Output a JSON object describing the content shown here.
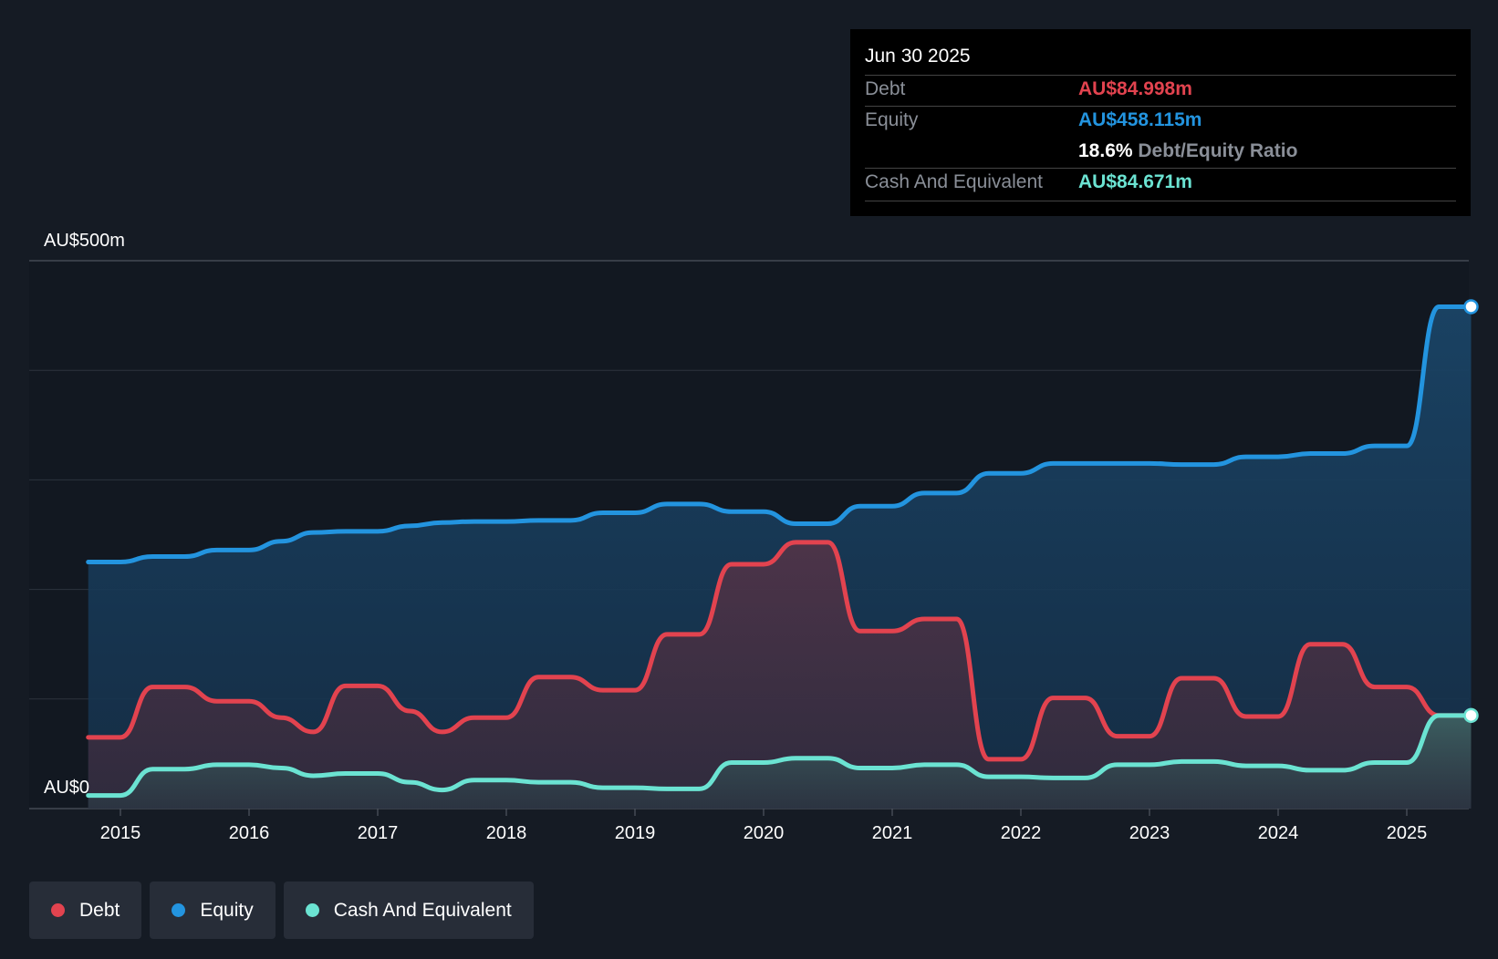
{
  "tooltip": {
    "date": "Jun 30 2025",
    "debt_label": "Debt",
    "debt_value": "AU$84.998m",
    "equity_label": "Equity",
    "equity_value": "AU$458.115m",
    "ratio_value": "18.6%",
    "ratio_label": "Debt/Equity Ratio",
    "cash_label": "Cash And Equivalent",
    "cash_value": "AU$84.671m"
  },
  "legend": {
    "debt": "Debt",
    "equity": "Equity",
    "cash": "Cash And Equivalent"
  },
  "colors": {
    "debt": "#e2434f",
    "equity": "#2394df",
    "cash": "#6be3d2",
    "background": "#151b24"
  },
  "chart_data": {
    "type": "area",
    "ylabel_top": "AU$500m",
    "ylabel_bottom": "AU$0",
    "ylim": [
      0,
      500
    ],
    "x_ticks": [
      "2015",
      "2016",
      "2017",
      "2018",
      "2019",
      "2020",
      "2021",
      "2022",
      "2023",
      "2024",
      "2025"
    ],
    "series": [
      {
        "name": "Equity",
        "points": [
          [
            2014.75,
            225
          ],
          [
            2015.0,
            225
          ],
          [
            2015.25,
            230
          ],
          [
            2015.5,
            230
          ],
          [
            2015.75,
            236
          ],
          [
            2016.0,
            236
          ],
          [
            2016.25,
            244
          ],
          [
            2016.5,
            252
          ],
          [
            2016.75,
            253
          ],
          [
            2017.0,
            253
          ],
          [
            2017.25,
            258
          ],
          [
            2017.5,
            261
          ],
          [
            2017.75,
            262
          ],
          [
            2018.0,
            262
          ],
          [
            2018.25,
            263
          ],
          [
            2018.5,
            263
          ],
          [
            2018.75,
            270
          ],
          [
            2019.0,
            270
          ],
          [
            2019.25,
            278
          ],
          [
            2019.5,
            278
          ],
          [
            2019.75,
            271
          ],
          [
            2020.0,
            271
          ],
          [
            2020.25,
            260
          ],
          [
            2020.5,
            260
          ],
          [
            2020.75,
            276
          ],
          [
            2021.0,
            276
          ],
          [
            2021.25,
            288
          ],
          [
            2021.5,
            288
          ],
          [
            2021.75,
            306
          ],
          [
            2022.0,
            306
          ],
          [
            2022.25,
            315
          ],
          [
            2022.5,
            315
          ],
          [
            2022.75,
            315
          ],
          [
            2023.0,
            315
          ],
          [
            2023.25,
            314
          ],
          [
            2023.5,
            314
          ],
          [
            2023.75,
            321
          ],
          [
            2024.0,
            321
          ],
          [
            2024.25,
            324
          ],
          [
            2024.5,
            324
          ],
          [
            2024.75,
            331
          ],
          [
            2025.0,
            331
          ],
          [
            2025.25,
            458
          ],
          [
            2025.5,
            458
          ]
        ]
      },
      {
        "name": "Debt",
        "points": [
          [
            2014.75,
            65
          ],
          [
            2015.0,
            65
          ],
          [
            2015.25,
            111
          ],
          [
            2015.5,
            111
          ],
          [
            2015.75,
            98
          ],
          [
            2016.0,
            98
          ],
          [
            2016.25,
            83
          ],
          [
            2016.5,
            70
          ],
          [
            2016.75,
            112
          ],
          [
            2017.0,
            112
          ],
          [
            2017.25,
            89
          ],
          [
            2017.5,
            70
          ],
          [
            2017.75,
            83
          ],
          [
            2018.0,
            83
          ],
          [
            2018.25,
            120
          ],
          [
            2018.5,
            120
          ],
          [
            2018.75,
            108
          ],
          [
            2019.0,
            108
          ],
          [
            2019.25,
            159
          ],
          [
            2019.5,
            159
          ],
          [
            2019.75,
            223
          ],
          [
            2020.0,
            223
          ],
          [
            2020.25,
            243
          ],
          [
            2020.5,
            243
          ],
          [
            2020.75,
            162
          ],
          [
            2021.0,
            162
          ],
          [
            2021.25,
            173
          ],
          [
            2021.5,
            173
          ],
          [
            2021.75,
            45
          ],
          [
            2022.0,
            45
          ],
          [
            2022.25,
            101
          ],
          [
            2022.5,
            101
          ],
          [
            2022.75,
            66
          ],
          [
            2023.0,
            66
          ],
          [
            2023.25,
            119
          ],
          [
            2023.5,
            119
          ],
          [
            2023.75,
            84
          ],
          [
            2024.0,
            84
          ],
          [
            2024.25,
            150
          ],
          [
            2024.5,
            150
          ],
          [
            2024.75,
            111
          ],
          [
            2025.0,
            111
          ],
          [
            2025.25,
            85
          ],
          [
            2025.5,
            85
          ]
        ]
      },
      {
        "name": "Cash And Equivalent",
        "points": [
          [
            2014.75,
            12
          ],
          [
            2015.0,
            12
          ],
          [
            2015.25,
            36
          ],
          [
            2015.5,
            36
          ],
          [
            2015.75,
            40
          ],
          [
            2016.0,
            40
          ],
          [
            2016.25,
            37
          ],
          [
            2016.5,
            30
          ],
          [
            2016.75,
            32
          ],
          [
            2017.0,
            32
          ],
          [
            2017.25,
            24
          ],
          [
            2017.5,
            17
          ],
          [
            2017.75,
            26
          ],
          [
            2018.0,
            26
          ],
          [
            2018.25,
            24
          ],
          [
            2018.5,
            24
          ],
          [
            2018.75,
            19
          ],
          [
            2019.0,
            19
          ],
          [
            2019.25,
            18
          ],
          [
            2019.5,
            18
          ],
          [
            2019.75,
            42
          ],
          [
            2020.0,
            42
          ],
          [
            2020.25,
            46
          ],
          [
            2020.5,
            46
          ],
          [
            2020.75,
            37
          ],
          [
            2021.0,
            37
          ],
          [
            2021.25,
            40
          ],
          [
            2021.5,
            40
          ],
          [
            2021.75,
            29
          ],
          [
            2022.0,
            29
          ],
          [
            2022.25,
            28
          ],
          [
            2022.5,
            28
          ],
          [
            2022.75,
            40
          ],
          [
            2023.0,
            40
          ],
          [
            2023.25,
            43
          ],
          [
            2023.5,
            43
          ],
          [
            2023.75,
            39
          ],
          [
            2024.0,
            39
          ],
          [
            2024.25,
            35
          ],
          [
            2024.5,
            35
          ],
          [
            2024.75,
            42
          ],
          [
            2025.0,
            42
          ],
          [
            2025.25,
            85
          ],
          [
            2025.5,
            85
          ]
        ]
      }
    ]
  }
}
